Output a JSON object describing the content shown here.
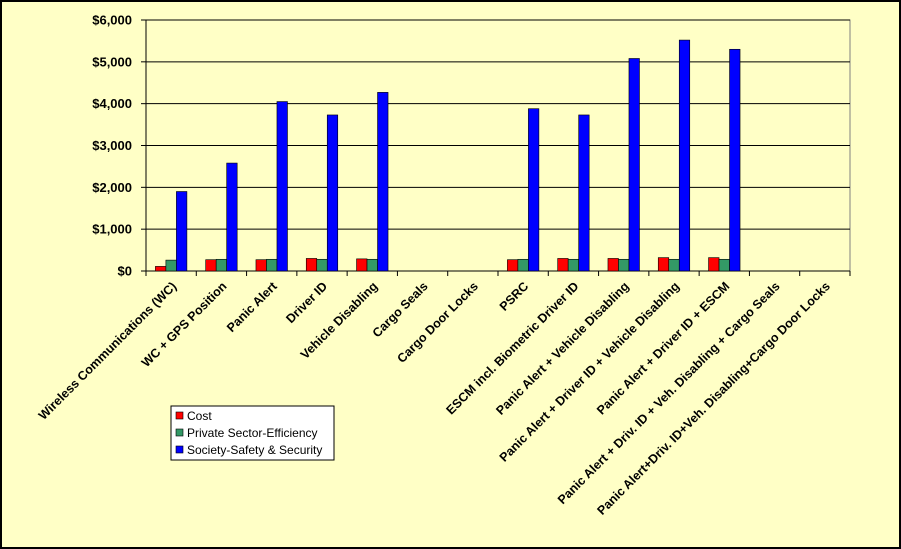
{
  "chart_data": {
    "type": "bar",
    "title": "",
    "xlabel": "",
    "ylabel": "",
    "ylim": [
      0,
      6000
    ],
    "yticks": [
      0,
      1000,
      2000,
      3000,
      4000,
      5000,
      6000
    ],
    "ytick_labels": [
      "$0",
      "$1,000",
      "$2,000",
      "$3,000",
      "$4,000",
      "$5,000",
      "$6,000"
    ],
    "grid": "horizontal",
    "legend_position": "bottom-left",
    "categories": [
      "Wireless Communications (WC)",
      "WC + GPS Position",
      "Panic Alert",
      "Driver ID",
      "Vehicle Disabling",
      "Cargo Seals",
      "Cargo Door Locks",
      "PSRC",
      "ESCM incl. Biometric Driver ID",
      "Panic Alert + Vehicle Disabling",
      "Panic Alert + Driver ID + Vehicle Disabling",
      "Panic Alert + Driver ID + ESCM",
      "Panic Alert + Driv. ID + Veh. Disabling + Cargo Seals",
      "Panic Alert+Driv. ID+Veh. Disabling+Cargo Door Locks"
    ],
    "series": [
      {
        "name": "Cost",
        "color": "#ff0000",
        "values": [
          110,
          270,
          270,
          300,
          290,
          0,
          0,
          270,
          300,
          300,
          320,
          320,
          0,
          0
        ]
      },
      {
        "name": "Private Sector-Efficiency",
        "color": "#339966",
        "values": [
          260,
          280,
          280,
          280,
          280,
          0,
          0,
          280,
          280,
          280,
          280,
          280,
          0,
          0
        ]
      },
      {
        "name": "Society-Safety & Security",
        "color": "#0000ff",
        "values": [
          1900,
          2580,
          4050,
          3730,
          4270,
          0,
          0,
          3880,
          3730,
          5080,
          5520,
          5300,
          0,
          0
        ]
      }
    ]
  }
}
